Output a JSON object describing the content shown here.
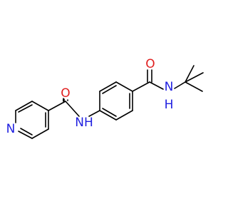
{
  "atoms": [
    {
      "label": "N"
    },
    {
      "label": "O"
    },
    {
      "label": "NH"
    },
    {
      "label": "O"
    },
    {
      "label": "N"
    },
    {
      "label": "H"
    }
  ]
}
